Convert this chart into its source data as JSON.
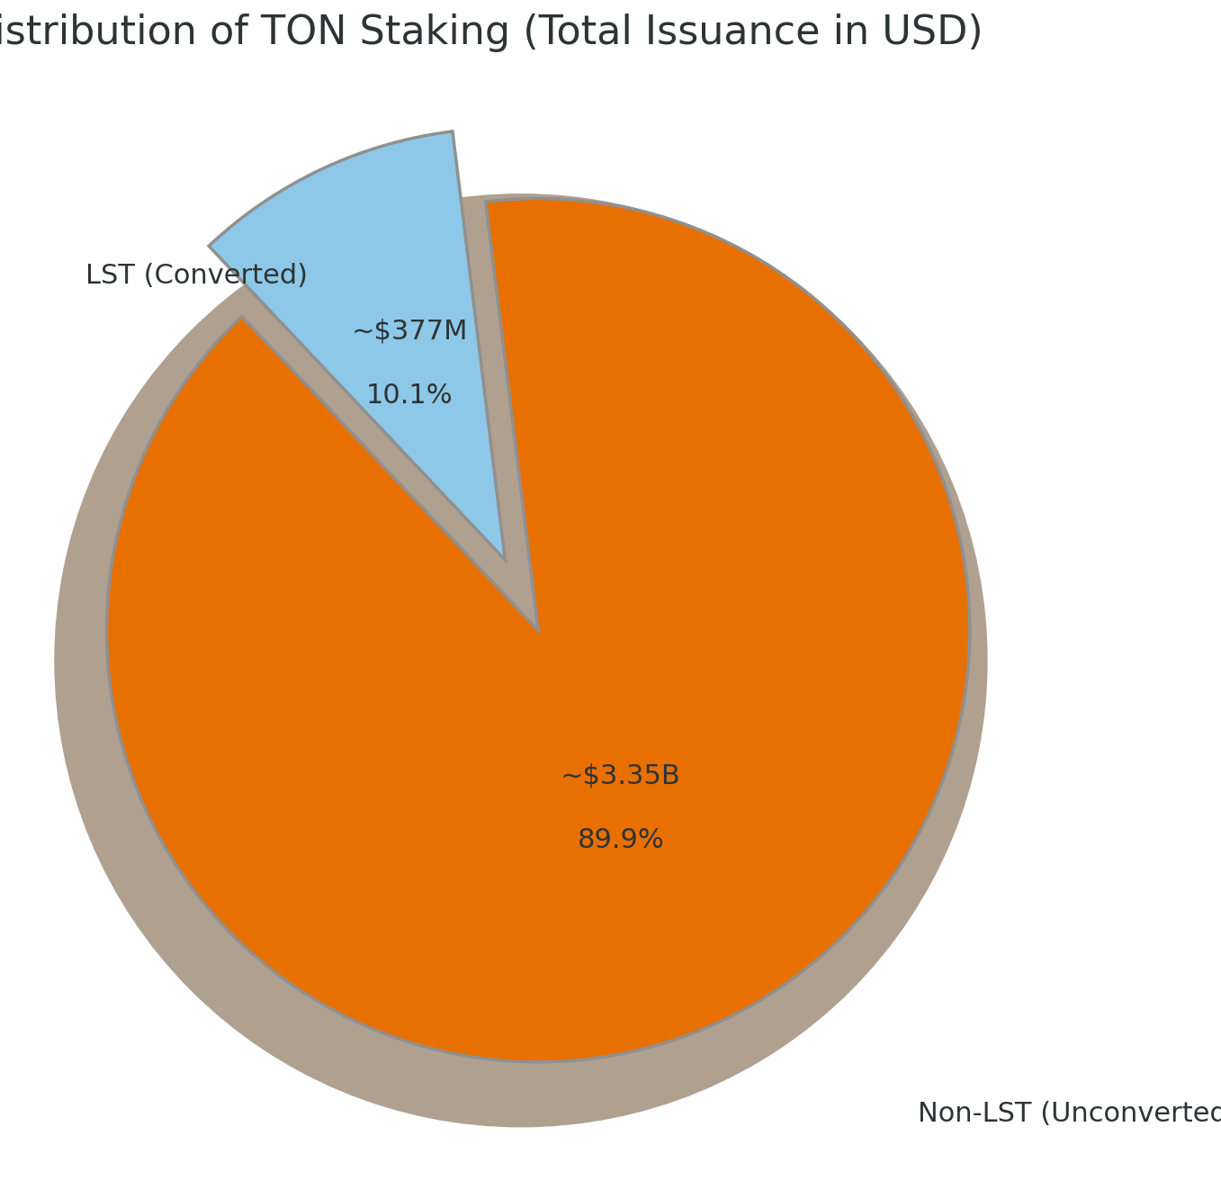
{
  "title": "Distribution of TON Staking (Total Issuance in USD)",
  "slices": [
    {
      "label": "LST (Converted)",
      "value": 10.1,
      "color": "#8EC8E8",
      "explode": 0.18,
      "amount": "~$377M",
      "pct": "10.1%"
    },
    {
      "label": "Non-LST (Unconverted)",
      "value": 89.9,
      "color": "#E87000",
      "explode": 0.0,
      "amount": "~$3.35B",
      "pct": "89.9%"
    }
  ],
  "shadow_color": "#b0a090",
  "title_fontsize": 32,
  "label_fontsize": 22,
  "annotation_fontsize": 22,
  "text_color": "#2d3436",
  "background_color": "#ffffff",
  "startangle": 97
}
